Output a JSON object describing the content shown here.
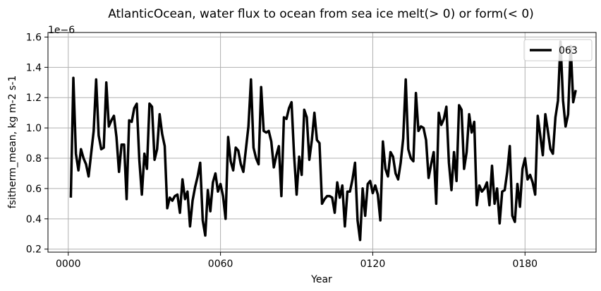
{
  "chart_data": {
    "type": "line",
    "title": "AtlanticOcean, water flux to ocean from sea ice melt(> 0) or form(< 0)",
    "xlabel": "Year",
    "ylabel": "fsitherm_mean, kg m-2 s-1",
    "offset_label": "1e−6",
    "xlim": [
      -8,
      208
    ],
    "ylim": [
      0.18,
      1.63
    ],
    "x_ticks": [
      0,
      60,
      120,
      180
    ],
    "x_tick_labels": [
      "0000",
      "0060",
      "0120",
      "0180"
    ],
    "y_ticks": [
      0.2,
      0.4,
      0.6,
      0.8,
      1.0,
      1.2,
      1.4,
      1.6
    ],
    "y_tick_labels": [
      "0.2",
      "0.4",
      "0.6",
      "0.8",
      "1.0",
      "1.2",
      "1.4",
      "1.6"
    ],
    "grid": true,
    "legend": {
      "position": "top-right",
      "entries": [
        "063"
      ]
    },
    "series": [
      {
        "name": "063",
        "color": "#000000",
        "x": [
          1,
          2,
          3,
          4,
          5,
          6,
          7,
          8,
          9,
          10,
          11,
          12,
          13,
          14,
          15,
          16,
          17,
          18,
          19,
          20,
          21,
          22,
          23,
          24,
          25,
          26,
          27,
          28,
          29,
          30,
          31,
          32,
          33,
          34,
          35,
          36,
          37,
          38,
          39,
          40,
          41,
          42,
          43,
          44,
          45,
          46,
          47,
          48,
          49,
          50,
          51,
          52,
          53,
          54,
          55,
          56,
          57,
          58,
          59,
          60,
          61,
          62,
          63,
          64,
          65,
          66,
          67,
          68,
          69,
          70,
          71,
          72,
          73,
          74,
          75,
          76,
          77,
          78,
          79,
          80,
          81,
          82,
          83,
          84,
          85,
          86,
          87,
          88,
          89,
          90,
          91,
          92,
          93,
          94,
          95,
          96,
          97,
          98,
          99,
          100,
          101,
          102,
          103,
          104,
          105,
          106,
          107,
          108,
          109,
          110,
          111,
          112,
          113,
          114,
          115,
          116,
          117,
          118,
          119,
          120,
          121,
          122,
          123,
          124,
          125,
          126,
          127,
          128,
          129,
          130,
          131,
          132,
          133,
          134,
          135,
          136,
          137,
          138,
          139,
          140,
          141,
          142,
          143,
          144,
          145,
          146,
          147,
          148,
          149,
          150,
          151,
          152,
          153,
          154,
          155,
          156,
          157,
          158,
          159,
          160,
          161,
          162,
          163,
          164,
          165,
          166,
          167,
          168,
          169,
          170,
          171,
          172,
          173,
          174,
          175,
          176,
          177,
          178,
          179,
          180,
          181,
          182,
          183,
          184,
          185,
          186,
          187,
          188,
          189,
          190,
          191,
          192,
          193,
          194,
          195,
          196,
          197,
          198,
          199,
          200
        ],
        "values": [
          0.54,
          1.33,
          0.83,
          0.72,
          0.86,
          0.8,
          0.76,
          0.68,
          0.83,
          0.98,
          1.32,
          0.95,
          0.86,
          0.87,
          1.3,
          1.01,
          1.05,
          1.08,
          0.94,
          0.71,
          0.89,
          0.89,
          0.53,
          1.05,
          1.04,
          1.13,
          1.16,
          0.79,
          0.56,
          0.83,
          0.73,
          1.16,
          1.14,
          0.79,
          0.86,
          1.09,
          0.96,
          0.88,
          0.47,
          0.54,
          0.52,
          0.55,
          0.56,
          0.44,
          0.66,
          0.53,
          0.58,
          0.35,
          0.52,
          0.61,
          0.68,
          0.77,
          0.39,
          0.29,
          0.59,
          0.45,
          0.64,
          0.7,
          0.58,
          0.63,
          0.55,
          0.4,
          0.94,
          0.78,
          0.72,
          0.87,
          0.85,
          0.76,
          0.71,
          0.86,
          1.01,
          1.32,
          0.87,
          0.8,
          0.76,
          1.27,
          0.98,
          0.97,
          0.98,
          0.91,
          0.74,
          0.82,
          0.88,
          0.55,
          1.07,
          1.06,
          1.13,
          1.17,
          0.82,
          0.56,
          0.81,
          0.69,
          1.12,
          1.07,
          0.79,
          0.92,
          1.1,
          0.92,
          0.9,
          0.5,
          0.53,
          0.55,
          0.55,
          0.54,
          0.44,
          0.64,
          0.54,
          0.62,
          0.35,
          0.58,
          0.58,
          0.66,
          0.77,
          0.39,
          0.26,
          0.6,
          0.42,
          0.63,
          0.65,
          0.57,
          0.62,
          0.56,
          0.39,
          0.91,
          0.73,
          0.68,
          0.84,
          0.81,
          0.7,
          0.66,
          0.77,
          0.93,
          1.32,
          0.86,
          0.8,
          0.78,
          1.23,
          0.98,
          1.01,
          1.0,
          0.92,
          0.67,
          0.76,
          0.84,
          0.5,
          1.1,
          1.02,
          1.06,
          1.14,
          0.77,
          0.59,
          0.84,
          0.65,
          1.15,
          1.12,
          0.73,
          0.84,
          1.09,
          0.97,
          1.04,
          0.49,
          0.62,
          0.58,
          0.6,
          0.64,
          0.49,
          0.75,
          0.5,
          0.6,
          0.37,
          0.58,
          0.59,
          0.71,
          0.88,
          0.42,
          0.38,
          0.63,
          0.48,
          0.73,
          0.8,
          0.66,
          0.69,
          0.64,
          0.56,
          1.08,
          0.95,
          0.82,
          1.09,
          0.98,
          0.86,
          0.83,
          1.07,
          1.18,
          1.57,
          1.18,
          1.01,
          1.09,
          1.54,
          1.17,
          1.25
        ]
      }
    ]
  }
}
